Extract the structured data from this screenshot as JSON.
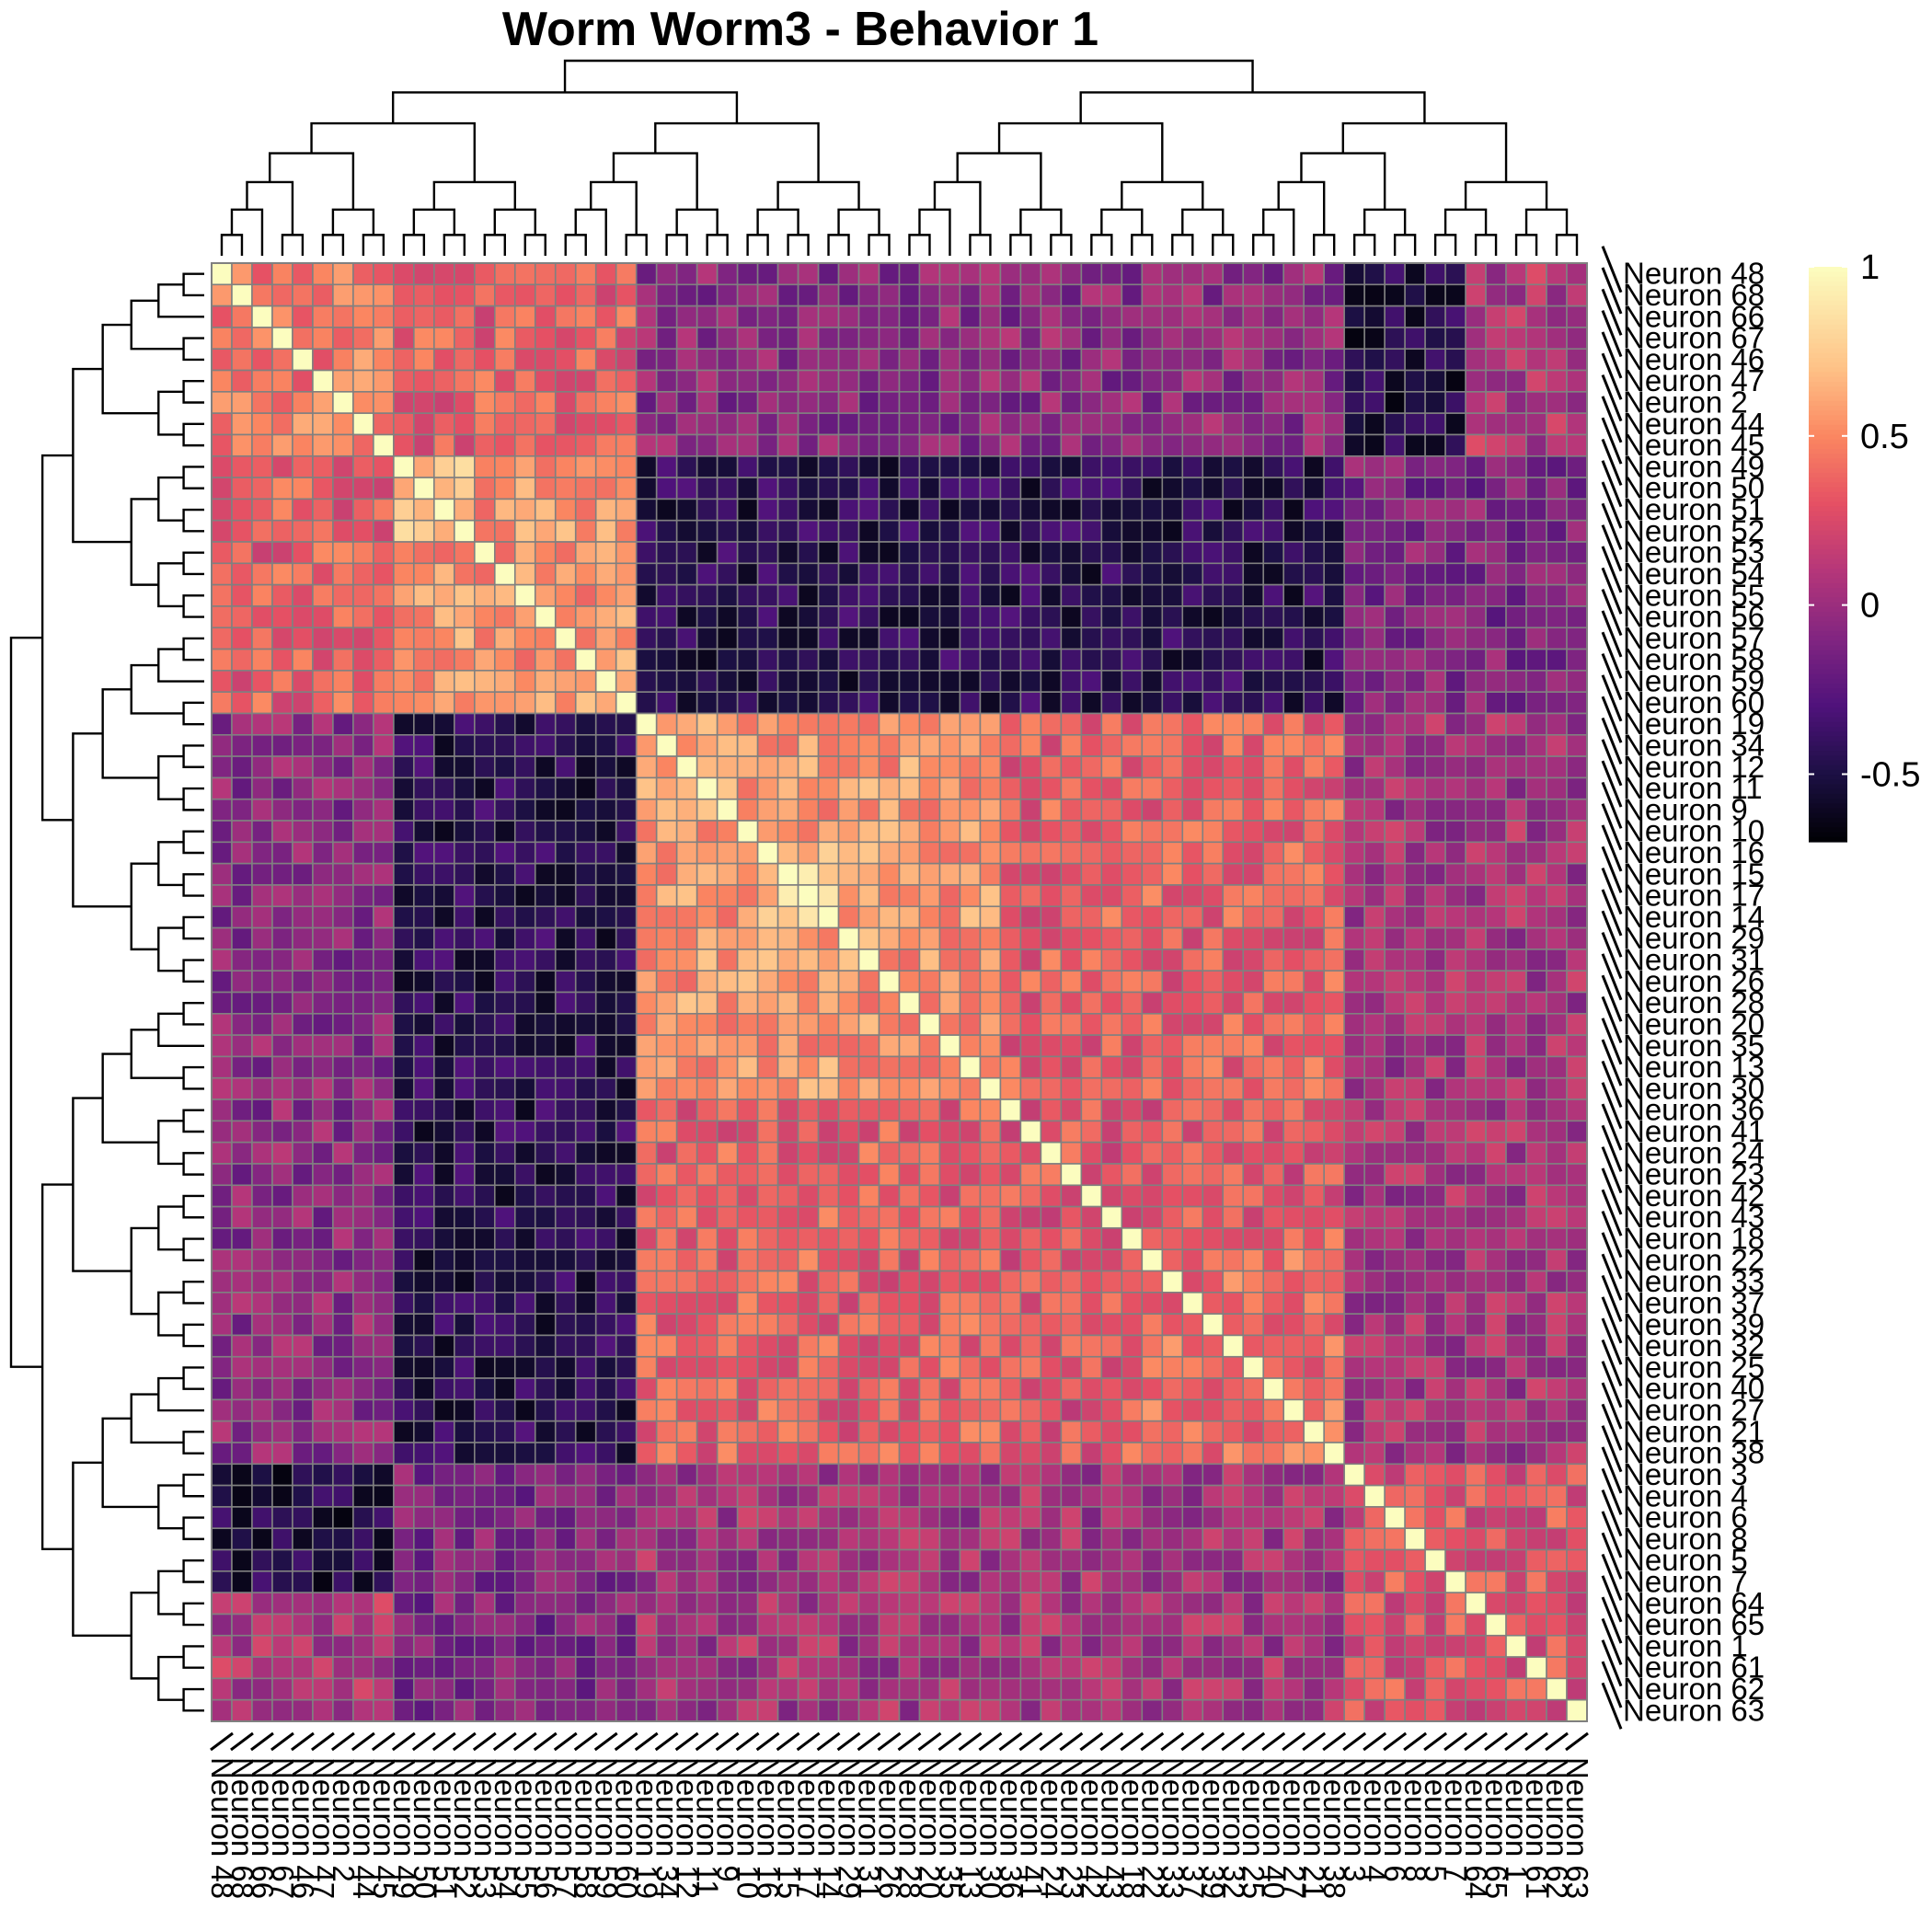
{
  "chart_data": {
    "type": "heatmap",
    "title": "Worm Worm3 - Behavior 1",
    "row_labels": [
      "Neuron 48",
      "Neuron 68",
      "Neuron 66",
      "Neuron 67",
      "Neuron 46",
      "Neuron 47",
      "Neuron 2",
      "Neuron 44",
      "Neuron 45",
      "Neuron 49",
      "Neuron 50",
      "Neuron 51",
      "Neuron 52",
      "Neuron 53",
      "Neuron 54",
      "Neuron 55",
      "Neuron 56",
      "Neuron 57",
      "Neuron 58",
      "Neuron 59",
      "Neuron 60",
      "Neuron 19",
      "Neuron 34",
      "Neuron 12",
      "Neuron 11",
      "Neuron 9",
      "Neuron 10",
      "Neuron 16",
      "Neuron 15",
      "Neuron 17",
      "Neuron 14",
      "Neuron 29",
      "Neuron 31",
      "Neuron 26",
      "Neuron 28",
      "Neuron 20",
      "Neuron 35",
      "Neuron 13",
      "Neuron 30",
      "Neuron 36",
      "Neuron 41",
      "Neuron 24",
      "Neuron 23",
      "Neuron 42",
      "Neuron 43",
      "Neuron 18",
      "Neuron 22",
      "Neuron 33",
      "Neuron 37",
      "Neuron 39",
      "Neuron 32",
      "Neuron 25",
      "Neuron 40",
      "Neuron 27",
      "Neuron 21",
      "Neuron 38",
      "Neuron 3",
      "Neuron 4",
      "Neuron 6",
      "Neuron 8",
      "Neuron 5",
      "Neuron 7",
      "Neuron 64",
      "Neuron 65",
      "Neuron 1",
      "Neuron 61",
      "Neuron 62",
      "Neuron 63"
    ],
    "col_labels": [
      "Neuron 48",
      "Neuron 68",
      "Neuron 66",
      "Neuron 67",
      "Neuron 46",
      "Neuron 47",
      "Neuron 2",
      "Neuron 44",
      "Neuron 45",
      "Neuron 49",
      "Neuron 50",
      "Neuron 51",
      "Neuron 52",
      "Neuron 53",
      "Neuron 54",
      "Neuron 55",
      "Neuron 56",
      "Neuron 57",
      "Neuron 58",
      "Neuron 59",
      "Neuron 60",
      "Neuron 19",
      "Neuron 34",
      "Neuron 12",
      "Neuron 11",
      "Neuron 9",
      "Neuron 10",
      "Neuron 16",
      "Neuron 15",
      "Neuron 17",
      "Neuron 14",
      "Neuron 29",
      "Neuron 31",
      "Neuron 26",
      "Neuron 28",
      "Neuron 20",
      "Neuron 35",
      "Neuron 13",
      "Neuron 30",
      "Neuron 36",
      "Neuron 41",
      "Neuron 24",
      "Neuron 23",
      "Neuron 42",
      "Neuron 43",
      "Neuron 18",
      "Neuron 22",
      "Neuron 33",
      "Neuron 37",
      "Neuron 39",
      "Neuron 32",
      "Neuron 25",
      "Neuron 40",
      "Neuron 27",
      "Neuron 21",
      "Neuron 38",
      "Neuron 3",
      "Neuron 4",
      "Neuron 6",
      "Neuron 8",
      "Neuron 5",
      "Neuron 7",
      "Neuron 64",
      "Neuron 65",
      "Neuron 1",
      "Neuron 61",
      "Neuron 62",
      "Neuron 63"
    ],
    "diagonal": 1,
    "background_correlation": 0.1,
    "blocks": [
      {
        "rows": [
          0,
          8
        ],
        "cols": [
          0,
          8
        ],
        "value": 0.45
      },
      {
        "rows": [
          9,
          20
        ],
        "cols": [
          9,
          20
        ],
        "value": 0.55
      },
      {
        "rows": [
          9,
          12
        ],
        "cols": [
          9,
          12
        ],
        "value": 0.75
      },
      {
        "rows": [
          0,
          8
        ],
        "cols": [
          9,
          20
        ],
        "value": 0.35
      },
      {
        "rows": [
          9,
          20
        ],
        "cols": [
          21,
          55
        ],
        "value": -0.45
      },
      {
        "rows": [
          0,
          8
        ],
        "cols": [
          21,
          55
        ],
        "value": -0.05
      },
      {
        "rows": [
          21,
          38
        ],
        "cols": [
          21,
          38
        ],
        "value": 0.55
      },
      {
        "rows": [
          27,
          30
        ],
        "cols": [
          27,
          30
        ],
        "value": 0.75
      },
      {
        "rows": [
          39,
          44
        ],
        "cols": [
          39,
          44
        ],
        "value": 0.6
      },
      {
        "rows": [
          21,
          38
        ],
        "cols": [
          39,
          55
        ],
        "value": 0.35
      },
      {
        "rows": [
          39,
          55
        ],
        "cols": [
          39,
          55
        ],
        "value": 0.3
      },
      {
        "rows": [
          45,
          55
        ],
        "cols": [
          45,
          55
        ],
        "value": 0.4
      },
      {
        "rows": [
          56,
          61
        ],
        "cols": [
          56,
          61
        ],
        "value": 0.8
      },
      {
        "rows": [
          62,
          67
        ],
        "cols": [
          62,
          67
        ],
        "value": 0.35
      },
      {
        "rows": [
          56,
          67
        ],
        "cols": [
          56,
          67
        ],
        "value": 0.3
      },
      {
        "rows": [
          0,
          8
        ],
        "cols": [
          56,
          61
        ],
        "value": -0.5
      },
      {
        "rows": [
          9,
          20
        ],
        "cols": [
          56,
          67
        ],
        "value": -0.1
      },
      {
        "rows": [
          21,
          55
        ],
        "cols": [
          56,
          67
        ],
        "value": 0.05
      }
    ],
    "color_scale": {
      "min": -0.7,
      "max": 1,
      "stops": [
        {
          "value": -0.7,
          "color": "#000004"
        },
        {
          "value": -0.5,
          "color": "#1c1044"
        },
        {
          "value": -0.3,
          "color": "#4f127b"
        },
        {
          "value": -0.1,
          "color": "#812581"
        },
        {
          "value": 0.1,
          "color": "#b5367a"
        },
        {
          "value": 0.3,
          "color": "#e55064"
        },
        {
          "value": 0.5,
          "color": "#fb8761"
        },
        {
          "value": 0.7,
          "color": "#fec287"
        },
        {
          "value": 1.0,
          "color": "#fcfdbf"
        }
      ]
    },
    "legend_ticks": [
      "1",
      "0.5",
      "0",
      "-0.5"
    ],
    "legend_tick_values": [
      1,
      0.5,
      0,
      -0.5
    ],
    "cell_border_color": "#808080",
    "dendrograms": "row and column (hierarchical clustering)"
  }
}
